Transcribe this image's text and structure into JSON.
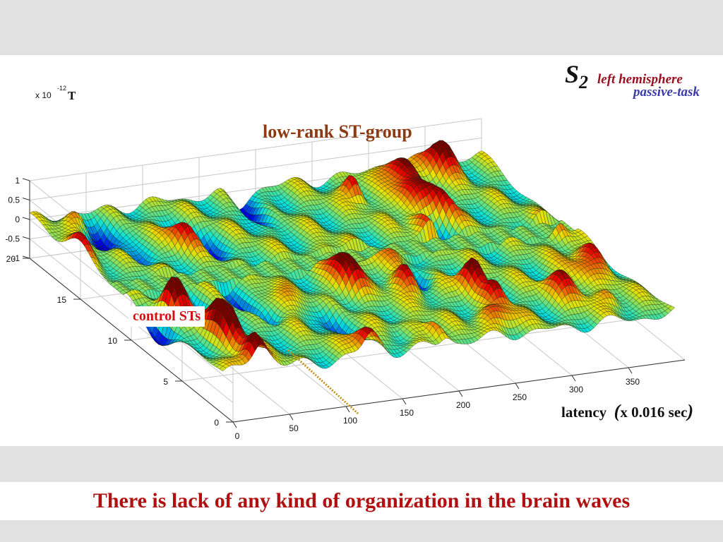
{
  "caption": "There is lack of any kind of organization in the brain waves",
  "labels": {
    "subject": "S",
    "subject_sub": "2",
    "hemisphere": "left hemisphere",
    "task": "passive-task",
    "group_title": "low-rank ST-group",
    "control": "control STs",
    "scale_prefix": "x 10",
    "scale_exp": "-12",
    "unit": "T",
    "latency_word": "latency",
    "latency_open": "(",
    "latency_scale": "x 0.016 sec",
    "latency_close": ")"
  },
  "colors": {
    "caption": "#b01010",
    "group_title": "#8b3a12",
    "control": "#d41010",
    "hemisphere": "#9a1020",
    "task": "#3a3aa8"
  },
  "chart_data": {
    "type": "surface3d",
    "colormap": "jet",
    "grid": true,
    "z_ticks": [
      "1",
      "0.5",
      "0",
      "-0.5",
      "-1"
    ],
    "y_ticks": [
      "0",
      "5",
      "10",
      "15",
      "20"
    ],
    "x_ticks": [
      "0",
      "50",
      "100",
      "150",
      "200",
      "250",
      "300",
      "350"
    ],
    "xlim": [
      0,
      400
    ],
    "ylim": [
      0,
      20
    ],
    "zlim": [
      -1,
      1
    ]
  }
}
